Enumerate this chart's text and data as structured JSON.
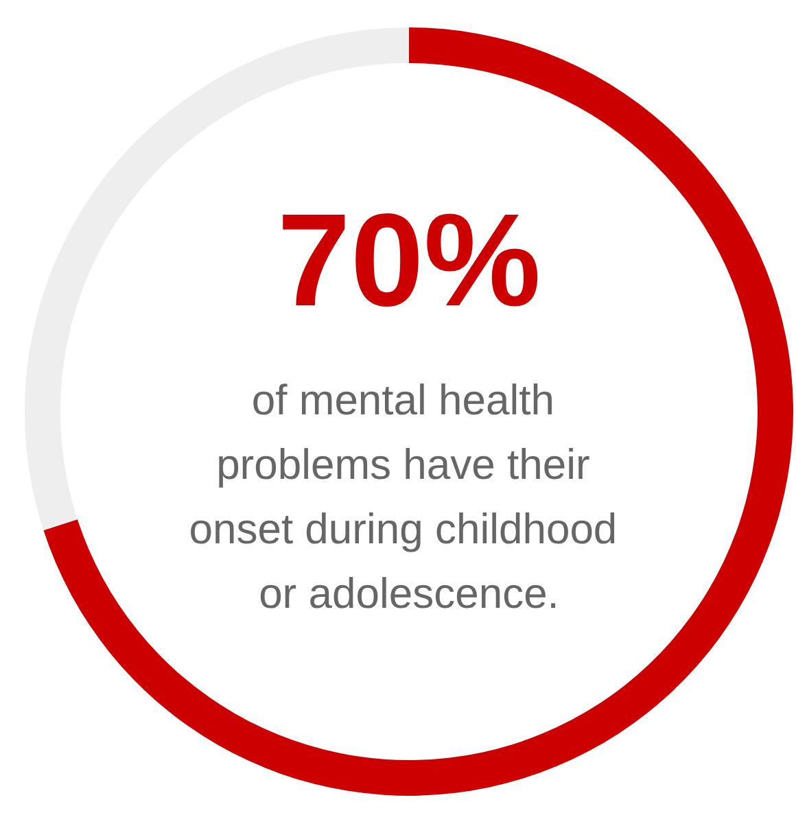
{
  "chart_data": {
    "type": "donut",
    "categories": [
      null,
      null
    ],
    "values": [
      70,
      30
    ],
    "colors": [
      "#cc0000",
      "#eeeeee"
    ],
    "value_labels": [
      "70%",
      null
    ],
    "annotations": [
      "of mental health problems have their onset during childhood or adolescence."
    ]
  }
}
